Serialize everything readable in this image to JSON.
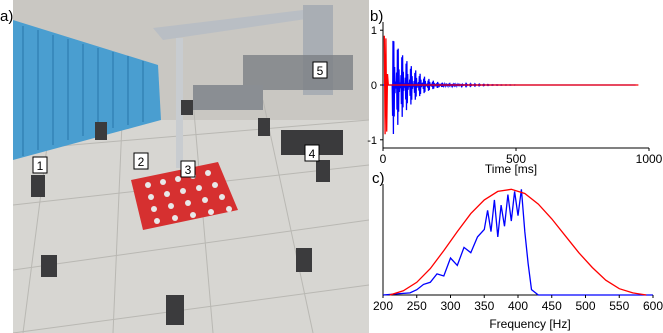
{
  "panels": {
    "a": "a)",
    "b": "b)",
    "c": "c)"
  },
  "photo": {
    "markers": [
      "1",
      "2",
      "3",
      "4",
      "5"
    ],
    "colors": {
      "floor": "#cfcfcb",
      "foam": "#4a9ed0",
      "cans": "#d63030",
      "rig": "#b9bec4"
    }
  },
  "chart_data": [
    {
      "type": "line",
      "panel": "b",
      "xlabel": "Time [ms]",
      "ylabel": "",
      "xlim": [
        0,
        1000
      ],
      "ylim": [
        -1.15,
        1.15
      ],
      "x_ticks": [
        0,
        500,
        1000
      ],
      "y_ticks": [
        -1,
        0,
        1
      ],
      "series": [
        {
          "color": "#0000ff",
          "description_values": {
            "onset_ms": 35,
            "decay_end_ms": 540,
            "peak_amplitude": 1.0
          },
          "x": [
            35,
            40,
            45,
            50,
            55,
            60,
            70,
            80,
            90,
            100,
            120,
            140,
            160,
            180,
            200,
            250,
            300,
            350,
            400,
            450,
            500,
            540,
            950
          ],
          "y": [
            1.0,
            -0.9,
            0.8,
            -0.7,
            0.6,
            -0.55,
            0.45,
            -0.4,
            0.35,
            -0.3,
            0.25,
            -0.2,
            0.18,
            -0.15,
            0.12,
            0.08,
            0.05,
            0.04,
            0.03,
            0.02,
            0.01,
            0.0,
            0.0
          ]
        },
        {
          "color": "#ff0000",
          "x": [
            5,
            8,
            11,
            14,
            17,
            20,
            960
          ],
          "y": [
            0.9,
            -0.9,
            0.85,
            -0.85,
            0.2,
            0.0,
            0.0
          ]
        }
      ]
    },
    {
      "type": "line",
      "panel": "c",
      "xlabel": "Frequency [Hz]",
      "ylabel": "",
      "xlim": [
        200,
        600
      ],
      "ylim": [
        0,
        1.05
      ],
      "x_ticks": [
        200,
        250,
        300,
        350,
        400,
        450,
        500,
        550,
        600
      ],
      "series": [
        {
          "color": "#0000ff",
          "x": [
            200,
            220,
            240,
            250,
            260,
            270,
            280,
            290,
            300,
            310,
            320,
            330,
            340,
            350,
            355,
            360,
            365,
            370,
            375,
            380,
            385,
            390,
            395,
            400,
            405,
            410,
            415,
            420,
            430,
            450,
            500,
            600
          ],
          "y": [
            0.0,
            0.01,
            0.02,
            0.05,
            0.1,
            0.12,
            0.2,
            0.18,
            0.35,
            0.28,
            0.45,
            0.4,
            0.55,
            0.62,
            0.8,
            0.6,
            0.9,
            0.55,
            0.85,
            0.65,
            0.95,
            0.7,
            0.98,
            0.75,
            1.0,
            0.6,
            0.3,
            0.05,
            0.0,
            0.0,
            0.0,
            0.0
          ]
        },
        {
          "color": "#ff0000",
          "x": [
            210,
            230,
            250,
            270,
            290,
            310,
            330,
            350,
            370,
            390,
            410,
            430,
            450,
            470,
            490,
            510,
            530,
            550,
            570,
            590
          ],
          "y": [
            0.0,
            0.04,
            0.12,
            0.25,
            0.42,
            0.6,
            0.77,
            0.9,
            0.98,
            1.0,
            0.96,
            0.86,
            0.72,
            0.56,
            0.4,
            0.26,
            0.14,
            0.06,
            0.02,
            0.0
          ]
        }
      ]
    }
  ]
}
